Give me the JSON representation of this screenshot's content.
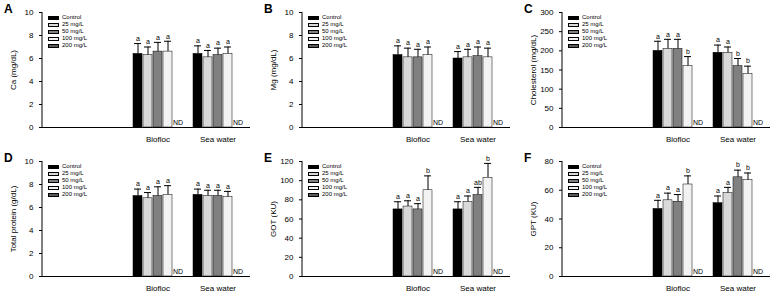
{
  "chart_data": [
    {
      "type": "bar",
      "title": "A",
      "y_label": "Ca (mg/dL)",
      "categories": [
        "Biofloc",
        "Sea water"
      ],
      "ylim": [
        0,
        10
      ],
      "yticks": [
        0,
        2,
        4,
        6,
        8,
        10
      ],
      "legend": "top-left",
      "series": [
        {
          "name": "Control",
          "color": "#000000",
          "values": [
            6.4,
            6.4
          ],
          "errors": [
            0.9,
            0.7
          ],
          "letters": [
            "a",
            "a"
          ]
        },
        {
          "name": "25 mg/L",
          "color": "#d9d9d9",
          "values": [
            6.3,
            6.1
          ],
          "errors": [
            0.7,
            0.6
          ],
          "letters": [
            "a",
            "a"
          ]
        },
        {
          "name": "50 mg/L",
          "color": "#808080",
          "values": [
            6.6,
            6.3
          ],
          "errors": [
            0.8,
            0.6
          ],
          "letters": [
            "a",
            "a"
          ]
        },
        {
          "name": "100 mg/L",
          "color": "#f2f2f2",
          "values": [
            6.6,
            6.4
          ],
          "errors": [
            0.9,
            0.6
          ],
          "letters": [
            "a",
            "a"
          ]
        },
        {
          "name": "200 mg/L",
          "color": "#595959",
          "values": [
            null,
            null
          ],
          "errors": [
            null,
            null
          ],
          "letters": [
            null,
            null
          ],
          "value_labels": [
            "ND",
            "ND"
          ]
        }
      ]
    },
    {
      "type": "bar",
      "title": "B",
      "y_label": "Mg (mg/dL)",
      "categories": [
        "Biofloc",
        "Sea water"
      ],
      "ylim": [
        0,
        10
      ],
      "yticks": [
        0,
        2,
        4,
        6,
        8,
        10
      ],
      "legend": "top-left",
      "series": [
        {
          "name": "Control",
          "color": "#000000",
          "values": [
            6.3,
            6.0
          ],
          "errors": [
            0.8,
            0.6
          ],
          "letters": [
            "a",
            "a"
          ]
        },
        {
          "name": "25 mg/L",
          "color": "#d9d9d9",
          "values": [
            6.1,
            6.1
          ],
          "errors": [
            0.8,
            0.7
          ],
          "letters": [
            "a",
            "a"
          ]
        },
        {
          "name": "50 mg/L",
          "color": "#808080",
          "values": [
            6.1,
            6.2
          ],
          "errors": [
            0.7,
            0.8
          ],
          "letters": [
            "a",
            "a"
          ]
        },
        {
          "name": "100 mg/L",
          "color": "#f2f2f2",
          "values": [
            6.3,
            6.1
          ],
          "errors": [
            0.7,
            0.8
          ],
          "letters": [
            "a",
            "a"
          ]
        },
        {
          "name": "200 mg/L",
          "color": "#595959",
          "values": [
            null,
            null
          ],
          "errors": [
            null,
            null
          ],
          "letters": [
            null,
            null
          ],
          "value_labels": [
            "ND",
            "ND"
          ]
        }
      ]
    },
    {
      "type": "bar",
      "title": "C",
      "y_label": "Cholesterol (mg/dL)",
      "categories": [
        "Biofloc",
        "Sea water"
      ],
      "ylim": [
        0,
        300
      ],
      "yticks": [
        0,
        50,
        100,
        150,
        200,
        250,
        300
      ],
      "legend": "top-left",
      "series": [
        {
          "name": "Control",
          "color": "#000000",
          "values": [
            200,
            195
          ],
          "errors": [
            25,
            20
          ],
          "letters": [
            "a",
            "a"
          ]
        },
        {
          "name": "25 mg/L",
          "color": "#d9d9d9",
          "values": [
            205,
            195
          ],
          "errors": [
            25,
            15
          ],
          "letters": [
            "a",
            "a"
          ]
        },
        {
          "name": "50 mg/L",
          "color": "#808080",
          "values": [
            205,
            160
          ],
          "errors": [
            25,
            20
          ],
          "letters": [
            "a",
            "b"
          ]
        },
        {
          "name": "100 mg/L",
          "color": "#f2f2f2",
          "values": [
            160,
            140
          ],
          "errors": [
            25,
            20
          ],
          "letters": [
            "b",
            "b"
          ]
        },
        {
          "name": "200 mg/L",
          "color": "#595959",
          "values": [
            null,
            null
          ],
          "errors": [
            null,
            null
          ],
          "letters": [
            null,
            null
          ],
          "value_labels": [
            "ND",
            "ND"
          ]
        }
      ]
    },
    {
      "type": "bar",
      "title": "D",
      "y_label": "Total protein (g/dL)",
      "categories": [
        "Biofloc",
        "Sea water"
      ],
      "ylim": [
        0,
        10
      ],
      "yticks": [
        0,
        2,
        4,
        6,
        8,
        10
      ],
      "legend": "top-left",
      "series": [
        {
          "name": "Control",
          "color": "#000000",
          "values": [
            7.0,
            7.1
          ],
          "errors": [
            0.6,
            0.5
          ],
          "letters": [
            "a",
            "a"
          ]
        },
        {
          "name": "25 mg/L",
          "color": "#d9d9d9",
          "values": [
            6.8,
            7.0
          ],
          "errors": [
            0.5,
            0.5
          ],
          "letters": [
            "a",
            "a"
          ]
        },
        {
          "name": "50 mg/L",
          "color": "#808080",
          "values": [
            7.0,
            7.0
          ],
          "errors": [
            0.8,
            0.5
          ],
          "letters": [
            "a",
            "a"
          ]
        },
        {
          "name": "100 mg/L",
          "color": "#f2f2f2",
          "values": [
            7.1,
            6.9
          ],
          "errors": [
            0.8,
            0.5
          ],
          "letters": [
            "a",
            "a"
          ]
        },
        {
          "name": "200 mg/L",
          "color": "#595959",
          "values": [
            null,
            null
          ],
          "errors": [
            null,
            null
          ],
          "letters": [
            null,
            null
          ],
          "value_labels": [
            "ND",
            "ND"
          ]
        }
      ]
    },
    {
      "type": "bar",
      "title": "E",
      "y_label": "GOT (KU)",
      "categories": [
        "Biofloc",
        "Sea water"
      ],
      "ylim": [
        0,
        120
      ],
      "yticks": [
        0,
        20,
        40,
        60,
        80,
        100,
        120
      ],
      "legend": "top-left",
      "series": [
        {
          "name": "Control",
          "color": "#000000",
          "values": [
            70,
            70
          ],
          "errors": [
            8,
            8
          ],
          "letters": [
            "a",
            "a"
          ]
        },
        {
          "name": "25 mg/L",
          "color": "#d9d9d9",
          "values": [
            73,
            78
          ],
          "errors": [
            6,
            6
          ],
          "letters": [
            "a",
            "a"
          ]
        },
        {
          "name": "50 mg/L",
          "color": "#808080",
          "values": [
            70,
            85
          ],
          "errors": [
            6,
            8
          ],
          "letters": [
            "a",
            "ab"
          ]
        },
        {
          "name": "100 mg/L",
          "color": "#f2f2f2",
          "values": [
            90,
            103
          ],
          "errors": [
            15,
            15
          ],
          "letters": [
            "b",
            "b"
          ]
        },
        {
          "name": "200 mg/L",
          "color": "#595959",
          "values": [
            null,
            null
          ],
          "errors": [
            null,
            null
          ],
          "letters": [
            null,
            null
          ],
          "value_labels": [
            "ND",
            "ND"
          ]
        }
      ]
    },
    {
      "type": "bar",
      "title": "F",
      "y_label": "GPT (KU)",
      "categories": [
        "Biofloc",
        "Sea water"
      ],
      "ylim": [
        0,
        80
      ],
      "yticks": [
        0,
        20,
        40,
        60,
        80
      ],
      "legend": "top-left",
      "series": [
        {
          "name": "Control",
          "color": "#000000",
          "values": [
            47,
            51
          ],
          "errors": [
            6,
            5
          ],
          "letters": [
            "a",
            "a"
          ]
        },
        {
          "name": "25 mg/L",
          "color": "#d9d9d9",
          "values": [
            53,
            58
          ],
          "errors": [
            5,
            4
          ],
          "letters": [
            "a",
            "a"
          ]
        },
        {
          "name": "50 mg/L",
          "color": "#808080",
          "values": [
            52,
            69
          ],
          "errors": [
            5,
            5
          ],
          "letters": [
            "a",
            "b"
          ]
        },
        {
          "name": "100 mg/L",
          "color": "#f2f2f2",
          "values": [
            64,
            67
          ],
          "errors": [
            6,
            5
          ],
          "letters": [
            "b",
            "b"
          ]
        },
        {
          "name": "200 mg/L",
          "color": "#595959",
          "values": [
            null,
            null
          ],
          "errors": [
            null,
            null
          ],
          "letters": [
            null,
            null
          ],
          "value_labels": [
            "ND",
            "ND"
          ]
        }
      ]
    }
  ]
}
